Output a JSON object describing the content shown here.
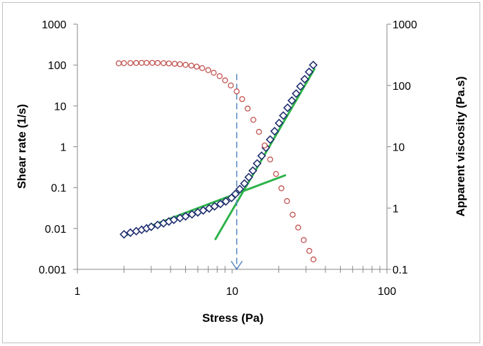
{
  "chart_data": {
    "type": "scatter",
    "title": "",
    "xlabel": "Stress (Pa)",
    "ylabel_left": "Shear rate (1/s)",
    "ylabel_right": "Apparent viscosity (Pa.s)",
    "x_scale": "log",
    "y_left_scale": "log",
    "y_right_scale": "log",
    "xlim": [
      1,
      100
    ],
    "ylim_left": [
      0.001,
      1000
    ],
    "ylim_right": [
      0.1,
      1000
    ],
    "x_ticks": [
      "1",
      "10",
      "100"
    ],
    "y_left_ticks": [
      "0.001",
      "0.01",
      "0.1",
      "1",
      "10",
      "100",
      "1000"
    ],
    "y_right_ticks": [
      "0.1",
      "1",
      "10",
      "100",
      "1000"
    ],
    "grid": false,
    "legend": "none",
    "colors": {
      "shear_rate": "#1f2d6e",
      "viscosity": "#c0504d",
      "fit_lines": "#2db34a",
      "marker_line": "#4f81bd"
    },
    "series": [
      {
        "axis": "left",
        "marker": "diamond",
        "x": [
          2.0,
          2.2,
          2.4,
          2.6,
          2.8,
          3.0,
          3.3,
          3.6,
          3.9,
          4.2,
          4.6,
          5.0,
          5.5,
          6.0,
          6.5,
          7.1,
          7.7,
          8.4,
          9.1,
          9.9,
          10.5,
          11.2,
          12.0,
          12.8,
          13.6,
          14.5,
          15.5,
          16.5,
          17.6,
          18.8,
          20.1,
          21.4,
          22.8,
          24.3,
          25.9,
          27.6,
          29.4,
          31.4,
          33.4
        ],
        "y": [
          0.0072,
          0.0079,
          0.0086,
          0.0093,
          0.0101,
          0.011,
          0.0122,
          0.0134,
          0.0148,
          0.0163,
          0.018,
          0.0198,
          0.0222,
          0.0248,
          0.0277,
          0.031,
          0.0348,
          0.0398,
          0.046,
          0.056,
          0.07,
          0.092,
          0.126,
          0.18,
          0.26,
          0.39,
          0.6,
          0.95,
          1.5,
          2.4,
          3.8,
          5.8,
          9.0,
          13.5,
          20,
          30,
          45,
          68,
          100
        ]
      },
      {
        "axis": "right",
        "marker": "circle",
        "x": [
          1.85,
          2.0,
          2.2,
          2.4,
          2.6,
          2.8,
          3.05,
          3.3,
          3.6,
          3.9,
          4.25,
          4.6,
          5.0,
          5.45,
          5.9,
          6.4,
          7.0,
          7.6,
          8.3,
          9.0,
          9.8,
          10.7,
          11.6,
          12.6,
          13.7,
          14.9,
          16.2,
          17.6,
          19.2,
          20.8,
          22.6,
          24.6,
          26.7,
          29.0,
          31.5,
          33.5
        ],
        "y": [
          230,
          231,
          232,
          233,
          234,
          234,
          234,
          233,
          231,
          229,
          226,
          222,
          217,
          211,
          203,
          192,
          178,
          161,
          142,
          121,
          100,
          80,
          60,
          42,
          27.5,
          17.5,
          10.5,
          6.2,
          3.6,
          2.1,
          1.3,
          0.78,
          0.48,
          0.3,
          0.2,
          0.145
        ]
      }
    ],
    "fit_lines": [
      {
        "axis": "left",
        "x": [
          2.05,
          22.0
        ],
        "y": [
          0.0068,
          0.2
        ]
      },
      {
        "axis": "left",
        "x": [
          7.8,
          34.0
        ],
        "y": [
          0.0055,
          80
        ]
      }
    ],
    "reference_line": {
      "axis": "left",
      "x": 10.7,
      "y_from": 60,
      "y_to": 0.001
    }
  }
}
